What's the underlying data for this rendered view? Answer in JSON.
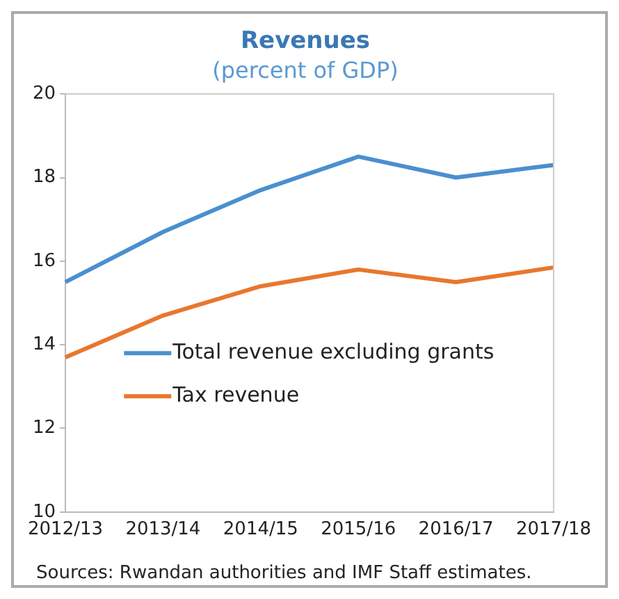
{
  "chart_data": {
    "type": "line",
    "title": "Revenues",
    "subtitle": "(percent of GDP)",
    "categories": [
      "2012/13",
      "2013/14",
      "2014/15",
      "2015/16",
      "2016/17",
      "2017/18"
    ],
    "series": [
      {
        "name": "Total revenue excluding grants",
        "color": "#4a8fcf",
        "values": [
          15.5,
          16.7,
          17.7,
          18.5,
          18.0,
          18.3
        ]
      },
      {
        "name": "Tax revenue",
        "color": "#e8772e",
        "values": [
          13.7,
          14.7,
          15.4,
          15.8,
          15.5,
          15.85
        ]
      }
    ],
    "ylim": [
      10,
      20
    ],
    "yticks": [
      10,
      12,
      14,
      16,
      18,
      20
    ],
    "grid": false,
    "legend": "center left",
    "marker": "none",
    "line_style": "solid",
    "annotations": [
      "Sources: Rwandan authorities and IMF Staff estimates."
    ]
  }
}
